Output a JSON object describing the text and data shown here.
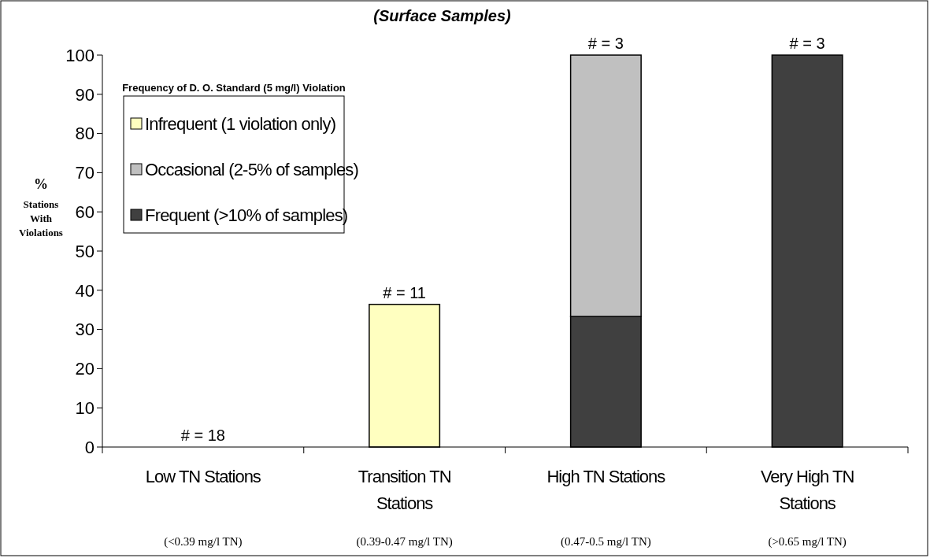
{
  "chart_data": {
    "type": "bar",
    "title": "(Surface Samples)",
    "ylabel": "% Stations With Violations",
    "legend_title": "Frequency of D. O. Standard (5 mg/l) Violation",
    "categories": [
      "Low TN Stations",
      "Transition TN Stations",
      "High TN Stations",
      "Very High TN Stations"
    ],
    "stacked": true,
    "series": [
      {
        "name": "Frequent (>10% of samples)",
        "color": "#404040",
        "values": [
          0,
          0,
          33.3,
          100
        ]
      },
      {
        "name": "Occasional (2-5% of samples)",
        "color": "#c0c0c0",
        "values": [
          0,
          0,
          66.7,
          0
        ]
      },
      {
        "name": "Infrequent (1 violation only)",
        "color": "#ffffc0",
        "values": [
          0,
          36.4,
          0,
          0
        ]
      }
    ],
    "annotations": [
      "(<0.39 mg/l TN)",
      "(0.39-0.47 mg/l TN)",
      "(0.47-0.5 mg/l TN)",
      "(>0.65 mg/l TN)",
      {
        "text": "# = 18",
        "x": "Low TN Stations",
        "y": 0
      },
      {
        "text": "# = 11",
        "x": "Transition TN Stations",
        "y": 36.4
      },
      {
        "text": "# = 3",
        "x": "High TN Stations",
        "y": 100
      },
      {
        "text": "# = 3",
        "x": "Very High TN Stations",
        "y": 100
      }
    ],
    "ylim": [
      0,
      100
    ],
    "yticks": [
      0,
      10,
      20,
      30,
      40,
      50,
      60,
      70,
      80,
      90,
      100
    ],
    "grid": false,
    "legend": "top left"
  }
}
